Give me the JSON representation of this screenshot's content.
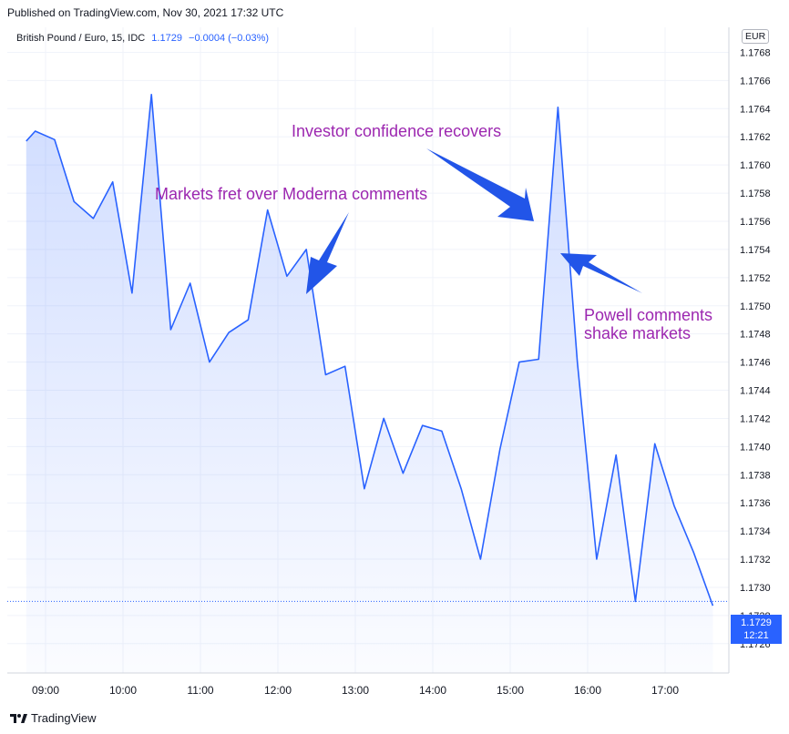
{
  "published": "Published on TradingView.com, Nov 30, 2021 17:32 UTC",
  "legend": {
    "symbol": "British Pound / Euro, 15, IDC",
    "last": "1.1729",
    "change": "−0.0004 (−0.03%)"
  },
  "currency": "EUR",
  "price_tag": {
    "price": "1.1729",
    "countdown": "12:21"
  },
  "annotations": {
    "confidence": "Investor confidence recovers",
    "moderna": "Markets fret over Moderna comments",
    "powell": "Powell comments\nshake markets"
  },
  "footer": {
    "brand": "TradingView",
    "logo_icon": "tradingview-logo-icon"
  },
  "colors": {
    "line": "#2962ff",
    "annotation": "#9c27b0",
    "arrow": "#2255e8",
    "grid": "#f0f3fa"
  },
  "chart_data": {
    "type": "area",
    "title": "British Pound / Euro, 15, IDC",
    "xlabel": "",
    "ylabel": "",
    "x_ticks": [
      "09:00",
      "10:00",
      "11:00",
      "12:00",
      "13:00",
      "14:00",
      "15:00",
      "16:00",
      "17:00"
    ],
    "y_ticks": [
      "1.1726",
      "1.1728",
      "1.1730",
      "1.1732",
      "1.1734",
      "1.1736",
      "1.1738",
      "1.1740",
      "1.1742",
      "1.1744",
      "1.1746",
      "1.1748",
      "1.1750",
      "1.1752",
      "1.1754",
      "1.1756",
      "1.1758",
      "1.1760",
      "1.1762",
      "1.1764",
      "1.1766",
      "1.1768"
    ],
    "ylim": [
      1.17245,
      1.1769
    ],
    "grid": true,
    "series": [
      {
        "values": [
          {
            "x": "08:45",
            "y": 1.17617
          },
          {
            "x": "08:52",
            "y": 1.17624
          },
          {
            "x": "09:07",
            "y": 1.17618
          },
          {
            "x": "09:22",
            "y": 1.17574
          },
          {
            "x": "09:37",
            "y": 1.17562
          },
          {
            "x": "09:52",
            "y": 1.17588
          },
          {
            "x": "10:07",
            "y": 1.17509
          },
          {
            "x": "10:22",
            "y": 1.1765
          },
          {
            "x": "10:37",
            "y": 1.17483
          },
          {
            "x": "10:52",
            "y": 1.17516
          },
          {
            "x": "11:07",
            "y": 1.1746
          },
          {
            "x": "11:22",
            "y": 1.17481
          },
          {
            "x": "11:37",
            "y": 1.1749
          },
          {
            "x": "11:52",
            "y": 1.17568
          },
          {
            "x": "12:07",
            "y": 1.17521
          },
          {
            "x": "12:22",
            "y": 1.1754
          },
          {
            "x": "12:37",
            "y": 1.17451
          },
          {
            "x": "12:52",
            "y": 1.17457
          },
          {
            "x": "13:07",
            "y": 1.1737
          },
          {
            "x": "13:22",
            "y": 1.1742
          },
          {
            "x": "13:37",
            "y": 1.17381
          },
          {
            "x": "13:52",
            "y": 1.17415
          },
          {
            "x": "14:07",
            "y": 1.17411
          },
          {
            "x": "14:22",
            "y": 1.1737
          },
          {
            "x": "14:37",
            "y": 1.1732
          },
          {
            "x": "14:52",
            "y": 1.17398
          },
          {
            "x": "15:07",
            "y": 1.1746
          },
          {
            "x": "15:22",
            "y": 1.17462
          },
          {
            "x": "15:37",
            "y": 1.17641
          },
          {
            "x": "15:52",
            "y": 1.1746
          },
          {
            "x": "16:07",
            "y": 1.1732
          },
          {
            "x": "16:22",
            "y": 1.17394
          },
          {
            "x": "16:37",
            "y": 1.1729
          },
          {
            "x": "16:52",
            "y": 1.17402
          },
          {
            "x": "17:07",
            "y": 1.17358
          },
          {
            "x": "17:22",
            "y": 1.17325
          },
          {
            "x": "17:37",
            "y": 1.17287
          }
        ]
      }
    ],
    "last_price": 1.1729
  }
}
